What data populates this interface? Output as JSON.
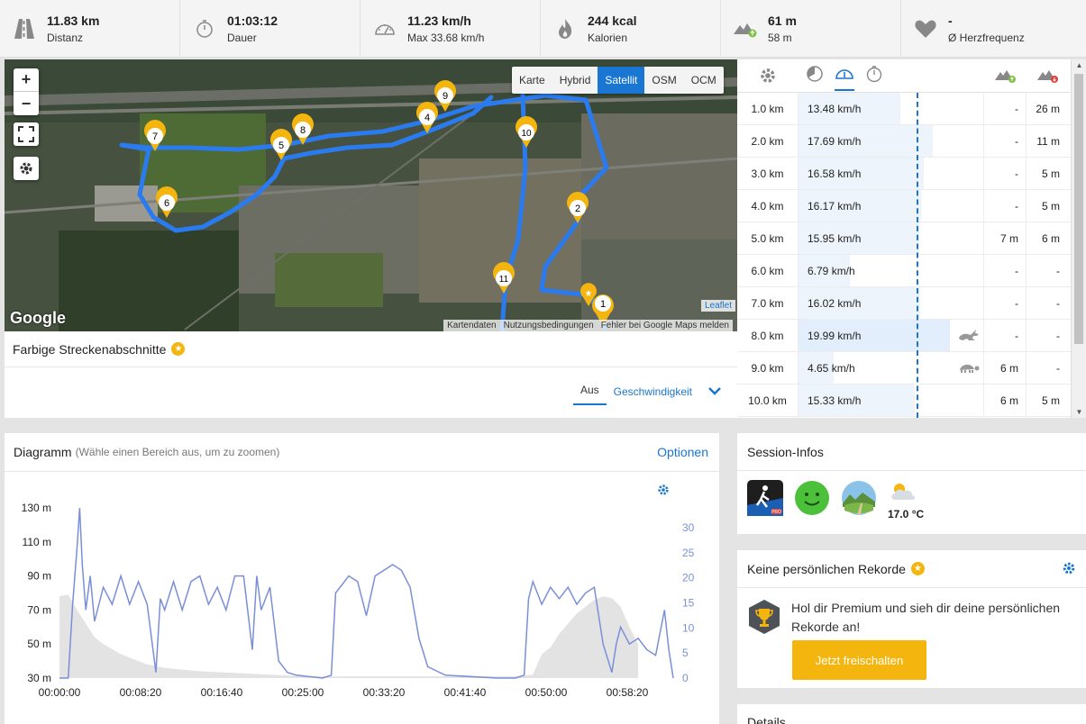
{
  "stats": [
    {
      "icon": "road-icon",
      "value": "11.83 km",
      "label": "Distanz"
    },
    {
      "icon": "stopwatch-icon",
      "value": "01:03:12",
      "label": "Dauer"
    },
    {
      "icon": "speedometer-icon",
      "value": "11.23 km/h",
      "label": "Max 33.68 km/h"
    },
    {
      "icon": "flame-icon",
      "value": "244 kcal",
      "label": "Kalorien"
    },
    {
      "icon": "elevation-icon",
      "value": "61 m",
      "label": "58 m"
    },
    {
      "icon": "heart-icon",
      "value": "-",
      "label": "Ø Herzfrequenz"
    }
  ],
  "map": {
    "zoom_in": "+",
    "zoom_out": "−",
    "layers": [
      "Karte",
      "Hybrid",
      "Satellit",
      "OSM",
      "OCM"
    ],
    "active_layer": "Satellit",
    "markers": [
      "1",
      "2",
      "4",
      "5",
      "6",
      "7",
      "8",
      "9",
      "10",
      "11"
    ],
    "logo": "Google",
    "leaflet": "Leaflet",
    "attribution": [
      "Kartendaten",
      "Nutzungsbedingungen",
      "Fehler bei Google Maps melden"
    ]
  },
  "segments": {
    "title": "Farbige Streckenabschnitte",
    "tab_off": "Aus",
    "tab_speed": "Geschwindigkeit"
  },
  "km_table": {
    "rows": [
      {
        "km": "1.0 km",
        "speed": "13.48 km/h",
        "up": "-",
        "down": "26 m"
      },
      {
        "km": "2.0 km",
        "speed": "17.69 km/h",
        "up": "-",
        "down": "11 m"
      },
      {
        "km": "3.0 km",
        "speed": "16.58 km/h",
        "up": "-",
        "down": "5 m"
      },
      {
        "km": "4.0 km",
        "speed": "16.17 km/h",
        "up": "-",
        "down": "5 m"
      },
      {
        "km": "5.0 km",
        "speed": "15.95 km/h",
        "up": "7 m",
        "down": "6 m"
      },
      {
        "km": "6.0 km",
        "speed": "6.79 km/h",
        "up": "-",
        "down": "-"
      },
      {
        "km": "7.0 km",
        "speed": "16.02 km/h",
        "up": "-",
        "down": "-"
      },
      {
        "km": "8.0 km",
        "speed": "19.99 km/h",
        "up": "-",
        "down": "-",
        "badge": "hare-icon"
      },
      {
        "km": "9.0 km",
        "speed": "4.65 km/h",
        "up": "6 m",
        "down": "-",
        "badge": "turtle-icon"
      },
      {
        "km": "10.0 km",
        "speed": "15.33 km/h",
        "up": "6 m",
        "down": "5 m"
      }
    ],
    "speed_values": [
      13.48,
      17.69,
      16.58,
      16.17,
      15.95,
      6.79,
      16.02,
      19.99,
      4.65,
      15.33
    ]
  },
  "diagram": {
    "title": "Diagramm",
    "subtitle": "(Wähle einen Bereich aus, um zu zoomen)",
    "options": "Optionen"
  },
  "chart_data": {
    "type": "area",
    "y_left_ticks": [
      "130 m",
      "110 m",
      "90 m",
      "70 m",
      "50 m",
      "30 m"
    ],
    "y_right_ticks": [
      "30",
      "25",
      "20",
      "15",
      "10",
      "5",
      "0"
    ],
    "x_ticks": [
      "00:00:00",
      "00:08:20",
      "00:16:40",
      "00:25:00",
      "00:33:20",
      "00:41:40",
      "00:50:00",
      "00:58:20"
    ],
    "elevation_ylim": [
      30,
      130
    ],
    "speed_ylim": [
      0,
      30
    ],
    "elevation_m": [
      [
        0,
        78
      ],
      [
        1,
        79
      ],
      [
        2,
        70
      ],
      [
        3,
        62
      ],
      [
        4,
        54
      ],
      [
        5,
        50
      ],
      [
        6,
        47
      ],
      [
        7,
        44
      ],
      [
        8,
        42
      ],
      [
        10,
        38
      ],
      [
        12,
        36
      ],
      [
        14,
        35
      ],
      [
        16,
        34
      ],
      [
        20,
        33
      ],
      [
        24,
        32
      ],
      [
        28,
        31
      ],
      [
        32,
        31
      ],
      [
        36,
        31
      ],
      [
        40,
        31
      ],
      [
        44,
        31
      ],
      [
        48,
        31
      ],
      [
        52,
        31
      ],
      [
        54,
        32
      ],
      [
        55,
        44
      ],
      [
        56,
        48
      ],
      [
        57,
        56
      ],
      [
        58,
        62
      ],
      [
        59,
        68
      ],
      [
        60,
        72
      ],
      [
        61,
        76
      ],
      [
        62,
        78
      ],
      [
        63,
        77
      ],
      [
        64,
        72
      ],
      [
        65,
        60
      ],
      [
        66,
        50
      ]
    ],
    "speed_kmh": [
      [
        0,
        0
      ],
      [
        1,
        0
      ],
      [
        1.5,
        13
      ],
      [
        2,
        23
      ],
      [
        2.3,
        30
      ],
      [
        2.6,
        20
      ],
      [
        3,
        12
      ],
      [
        3.5,
        18
      ],
      [
        4,
        10
      ],
      [
        5,
        16
      ],
      [
        6,
        13
      ],
      [
        7,
        18
      ],
      [
        8,
        13
      ],
      [
        9,
        17
      ],
      [
        10,
        13
      ],
      [
        11,
        1
      ],
      [
        11.5,
        14
      ],
      [
        12,
        12
      ],
      [
        13,
        17
      ],
      [
        14,
        12
      ],
      [
        15,
        17
      ],
      [
        16,
        18
      ],
      [
        17,
        13
      ],
      [
        18,
        16
      ],
      [
        19,
        12
      ],
      [
        20,
        18
      ],
      [
        21,
        18
      ],
      [
        22,
        5
      ],
      [
        22.5,
        18
      ],
      [
        23,
        12
      ],
      [
        24,
        16
      ],
      [
        25,
        3
      ],
      [
        26,
        1
      ],
      [
        27,
        0.5
      ],
      [
        30,
        0
      ],
      [
        31,
        0.5
      ],
      [
        31.5,
        15
      ],
      [
        32,
        16
      ],
      [
        33,
        18
      ],
      [
        34,
        17
      ],
      [
        35,
        11
      ],
      [
        36,
        18
      ],
      [
        37,
        19
      ],
      [
        38,
        20
      ],
      [
        39,
        19
      ],
      [
        40,
        16
      ],
      [
        41,
        7
      ],
      [
        42,
        2
      ],
      [
        44,
        0.5
      ],
      [
        50,
        0
      ],
      [
        52,
        0
      ],
      [
        53,
        0.5
      ],
      [
        53.5,
        14
      ],
      [
        54,
        17
      ],
      [
        55,
        13
      ],
      [
        56,
        16
      ],
      [
        57,
        14
      ],
      [
        58,
        16
      ],
      [
        59,
        13
      ],
      [
        60,
        15
      ],
      [
        61,
        16
      ],
      [
        62,
        6
      ],
      [
        63,
        1
      ],
      [
        63.5,
        6
      ],
      [
        64,
        9
      ],
      [
        65,
        6
      ],
      [
        66,
        7
      ],
      [
        67,
        5
      ],
      [
        68,
        4
      ],
      [
        69,
        12
      ],
      [
        69.5,
        5
      ],
      [
        70,
        0
      ]
    ]
  },
  "session": {
    "title": "Session-Infos",
    "temperature": "17.0 °C"
  },
  "records": {
    "title": "Keine persönlichen Rekorde",
    "text": "Hol dir Premium und sieh dir deine persönlichen Rekorde an!",
    "cta": "Jetzt freischalten"
  },
  "details": {
    "title": "Details"
  },
  "colors": {
    "accent": "#1976d2",
    "route": "#2b7bf0",
    "gold": "#f5b50f",
    "speed_line": "#7b8fd8",
    "elevation_fill": "#e3e3e3"
  }
}
